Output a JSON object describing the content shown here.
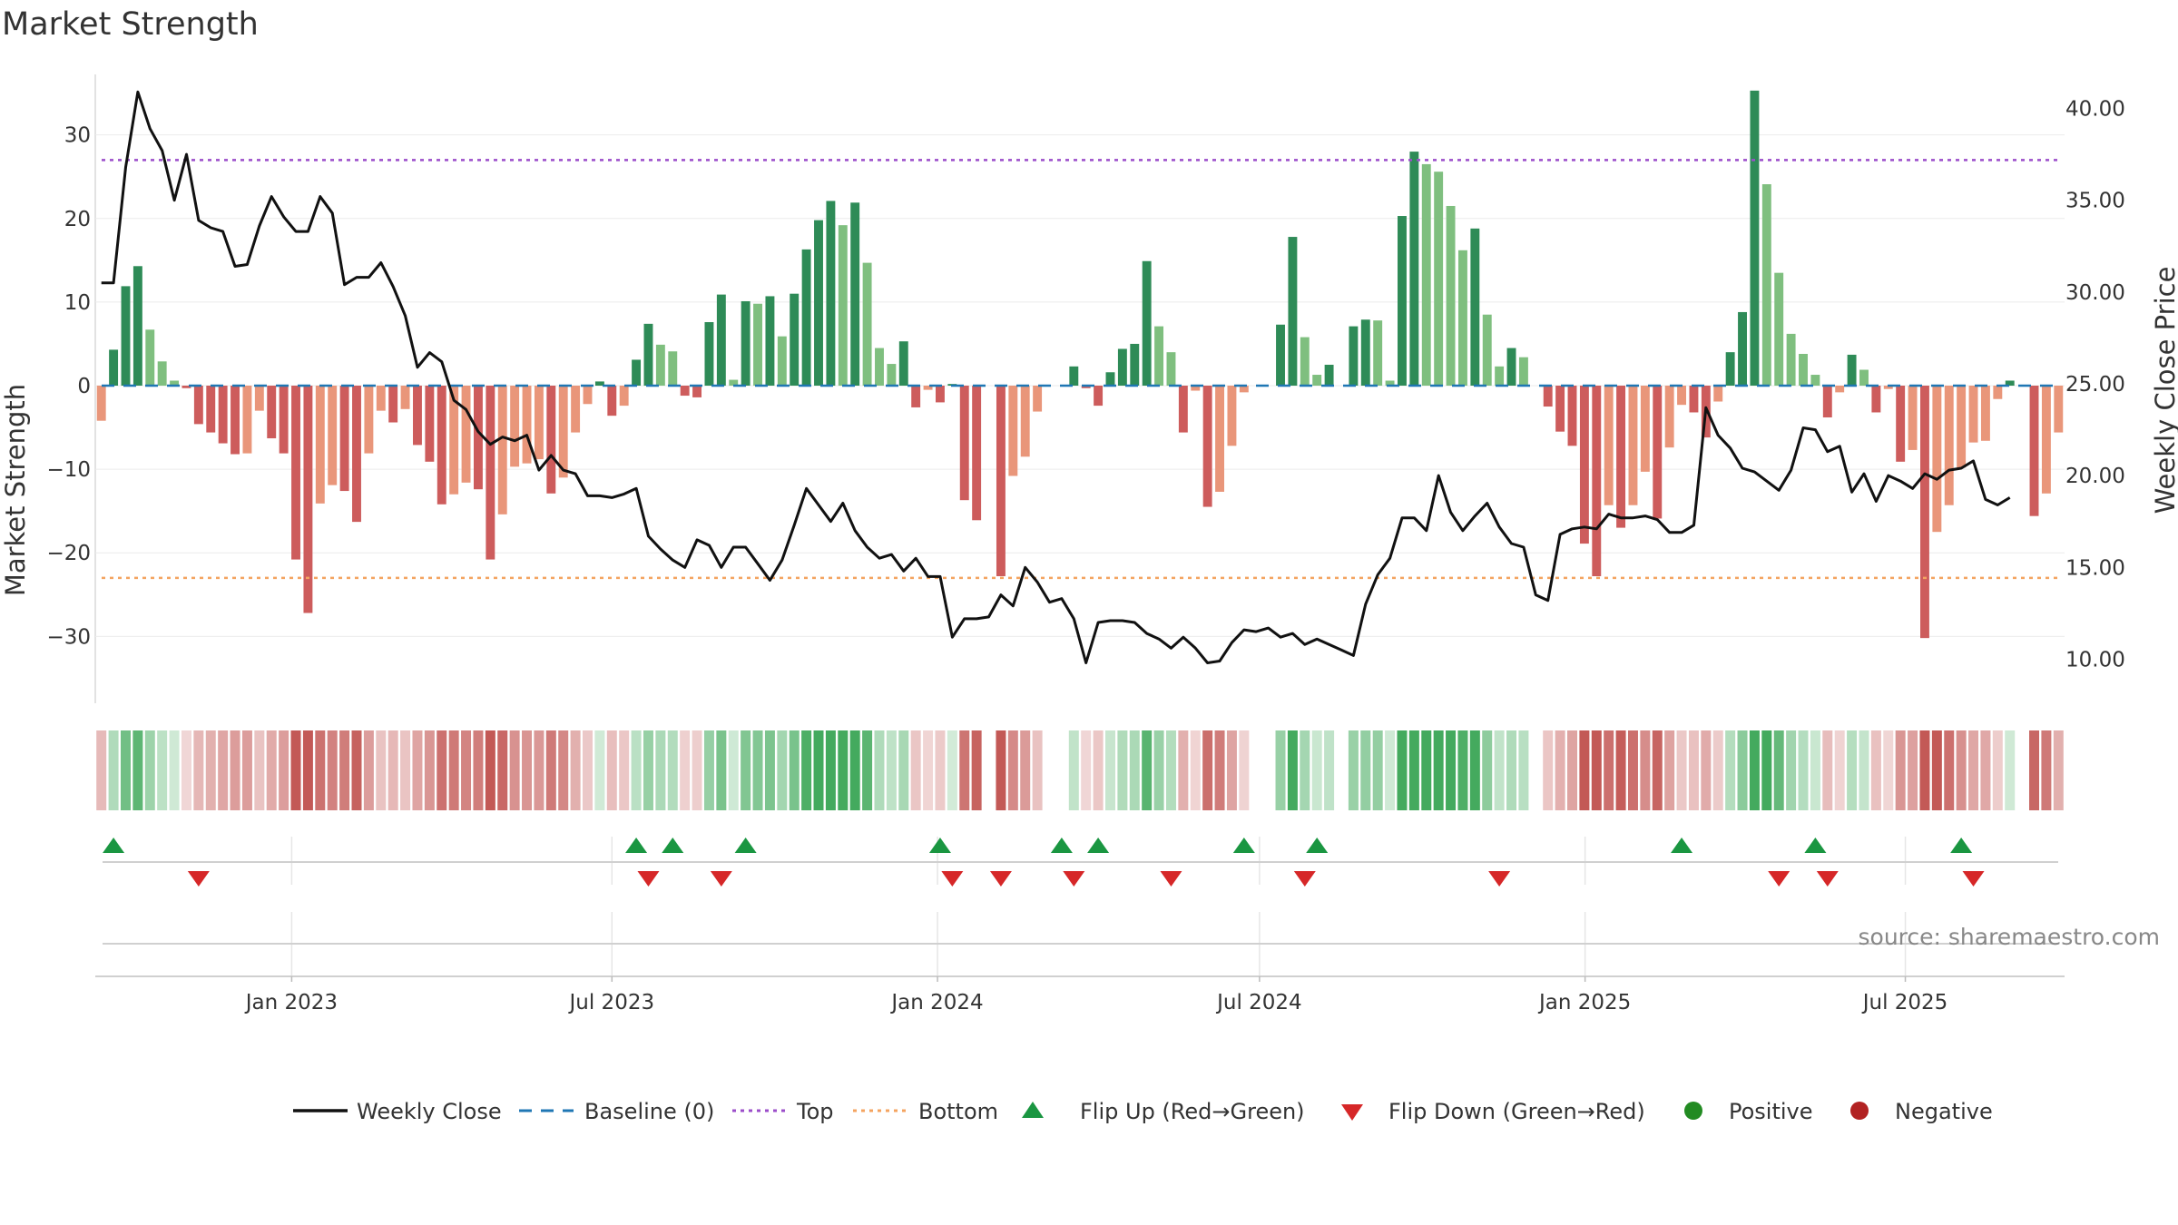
{
  "chart_data": {
    "type": "bar",
    "title": "Market Strength",
    "ylabel": "Market Strength",
    "y2label": "Weekly Close Price",
    "ylim": [
      -38,
      38
    ],
    "y2lim": [
      7.6,
      42.2
    ],
    "yticks": [
      30,
      20,
      10,
      0,
      -10,
      -20,
      -30
    ],
    "ytick_labels": [
      "30",
      "20",
      "10",
      "0",
      "−10",
      "−20",
      "−30"
    ],
    "y2ticks": [
      40,
      35,
      30,
      25,
      20,
      15,
      10
    ],
    "y2tick_labels": [
      "40.00",
      "35.00",
      "30.00",
      "25.00",
      "20.00",
      "15.00",
      "10.00"
    ],
    "x_start": "2022-09-12",
    "x_end": "2025-09-29",
    "xticks": [
      {
        "date": "2023-01-01",
        "label": "Jan 2023"
      },
      {
        "date": "2023-07-01",
        "label": "Jul 2023"
      },
      {
        "date": "2024-01-01",
        "label": "Jan 2024"
      },
      {
        "date": "2024-07-01",
        "label": "Jul 2024"
      },
      {
        "date": "2025-01-01",
        "label": "Jan 2025"
      },
      {
        "date": "2025-07-01",
        "label": "Jul 2025"
      }
    ],
    "grid": true,
    "legend_position": "bottom",
    "top_line": 27,
    "bottom_line": -23,
    "strength": [
      -4.2,
      4.3,
      11.9,
      14.3,
      6.7,
      2.9,
      0.6,
      -0.3,
      -4.6,
      -5.6,
      -6.9,
      -8.2,
      -8.1,
      -3.0,
      -6.3,
      -8.1,
      -20.8,
      -27.2,
      -14.1,
      -11.9,
      -12.6,
      -16.3,
      -8.1,
      -3.0,
      -4.4,
      -2.8,
      -7.1,
      -9.1,
      -14.2,
      -13.0,
      -11.6,
      -12.4,
      -20.8,
      -15.4,
      -9.7,
      -9.3,
      -8.8,
      -12.9,
      -11.0,
      -5.6,
      -2.2,
      0.5,
      -3.6,
      -2.4,
      3.1,
      7.4,
      4.9,
      4.1,
      -1.2,
      -1.4,
      7.6,
      10.9,
      0.7,
      10.1,
      9.8,
      10.7,
      5.9,
      11.0,
      16.3,
      19.8,
      22.1,
      19.2,
      21.9,
      14.7,
      4.5,
      2.6,
      5.3,
      -2.6,
      -0.5,
      -2.0,
      0.2,
      -13.7,
      -16.1,
      0.0,
      -22.8,
      -10.8,
      -8.5,
      -3.1,
      0.0,
      0.0,
      2.3,
      -0.3,
      -2.4,
      1.6,
      4.4,
      5.0,
      14.9,
      7.1,
      4.0,
      -5.6,
      -0.6,
      -14.5,
      -12.7,
      -7.2,
      -0.8,
      0.0,
      0.0,
      7.3,
      17.8,
      5.8,
      1.3,
      2.5,
      0.0,
      7.1,
      7.9,
      7.8,
      0.6,
      20.3,
      28.0,
      26.5,
      25.6,
      21.5,
      16.2,
      18.8,
      8.5,
      2.3,
      4.5,
      3.4,
      0.0,
      -2.5,
      -5.5,
      -7.2,
      -18.9,
      -22.8,
      -14.3,
      -17.0,
      -14.3,
      -10.3,
      -15.9,
      -7.4,
      -2.3,
      -3.2,
      -6.2,
      -1.9,
      4.0,
      8.8,
      35.3,
      24.1,
      13.5,
      6.2,
      3.8,
      1.3,
      -3.8,
      -0.8,
      3.7,
      1.9,
      -3.2,
      -0.4,
      -9.1,
      -7.7,
      -30.2,
      -17.5,
      -14.3,
      -9.8,
      -6.8,
      -6.6,
      -1.6,
      0.6,
      0.0,
      -15.6,
      -12.9,
      -5.6
    ],
    "close": [
      30.5,
      30.5,
      36.8,
      40.9,
      38.9,
      37.7,
      35.0,
      37.5,
      33.9,
      33.5,
      33.3,
      31.4,
      31.5,
      33.6,
      35.2,
      34.1,
      33.3,
      33.3,
      35.2,
      34.3,
      30.4,
      30.8,
      30.8,
      31.6,
      30.3,
      28.7,
      25.9,
      26.7,
      26.2,
      24.1,
      23.6,
      22.4,
      21.7,
      22.1,
      21.9,
      22.2,
      20.3,
      21.1,
      20.3,
      20.1,
      18.9,
      18.9,
      18.8,
      19.0,
      19.3,
      16.7,
      16.0,
      15.4,
      15.0,
      16.5,
      16.2,
      15.0,
      16.1,
      16.1,
      15.2,
      14.3,
      15.4,
      17.3,
      19.3,
      18.4,
      17.5,
      18.5,
      17.0,
      16.1,
      15.5,
      15.7,
      14.8,
      15.5,
      14.5,
      14.5,
      11.2,
      12.2,
      12.2,
      12.3,
      13.5,
      12.9,
      15.0,
      14.2,
      13.1,
      13.3,
      12.2,
      9.8,
      12.0,
      12.1,
      12.1,
      12.0,
      11.4,
      11.1,
      10.6,
      11.2,
      10.6,
      9.8,
      9.9,
      10.9,
      11.6,
      11.5,
      11.7,
      11.2,
      11.4,
      10.8,
      11.1,
      10.8,
      10.5,
      10.2,
      13.0,
      14.6,
      15.5,
      17.7,
      17.7,
      17.0,
      20.0,
      18.0,
      17.0,
      17.8,
      18.5,
      17.2,
      16.3,
      16.1,
      13.5,
      13.2,
      16.8,
      17.1,
      17.2,
      17.1,
      17.9,
      17.7,
      17.7,
      17.8,
      17.6,
      16.9,
      16.9,
      17.3,
      23.7,
      22.2,
      21.5,
      20.4,
      20.2,
      19.7,
      19.2,
      20.3,
      22.6,
      22.5,
      21.3,
      21.6,
      19.1,
      20.1,
      18.6,
      20.0,
      19.7,
      19.3,
      20.1,
      19.8,
      20.3,
      20.4,
      20.8,
      18.7,
      18.4,
      18.8
    ],
    "flip_up": [
      1,
      44,
      47,
      53,
      69,
      79,
      82,
      94,
      100,
      130,
      141,
      153
    ],
    "flip_down": [
      8,
      45,
      51,
      70,
      74,
      80,
      88,
      99,
      115,
      138,
      142,
      154
    ],
    "colors": {
      "pos_strong": "#2e8b57",
      "pos_weak": "#7fbf7f",
      "neg_strong": "#cd5c5c",
      "neg_weak": "#e9967a",
      "price_line": "#111111",
      "baseline": "#1f77b4",
      "top_line": "#9b4dca",
      "bottom_line": "#f4a460",
      "flip_up": "#1a9641",
      "flip_down": "#d62728",
      "positive": "#228b22",
      "negative": "#b22222"
    }
  },
  "legend": {
    "weekly_close": "Weekly Close",
    "baseline": "Baseline (0)",
    "top": "Top",
    "bottom": "Bottom",
    "flip_up": "Flip Up (Red→Green)",
    "flip_down": "Flip Down (Green→Red)",
    "positive": "Positive",
    "negative": "Negative"
  },
  "source": "source: sharemaestro.com"
}
